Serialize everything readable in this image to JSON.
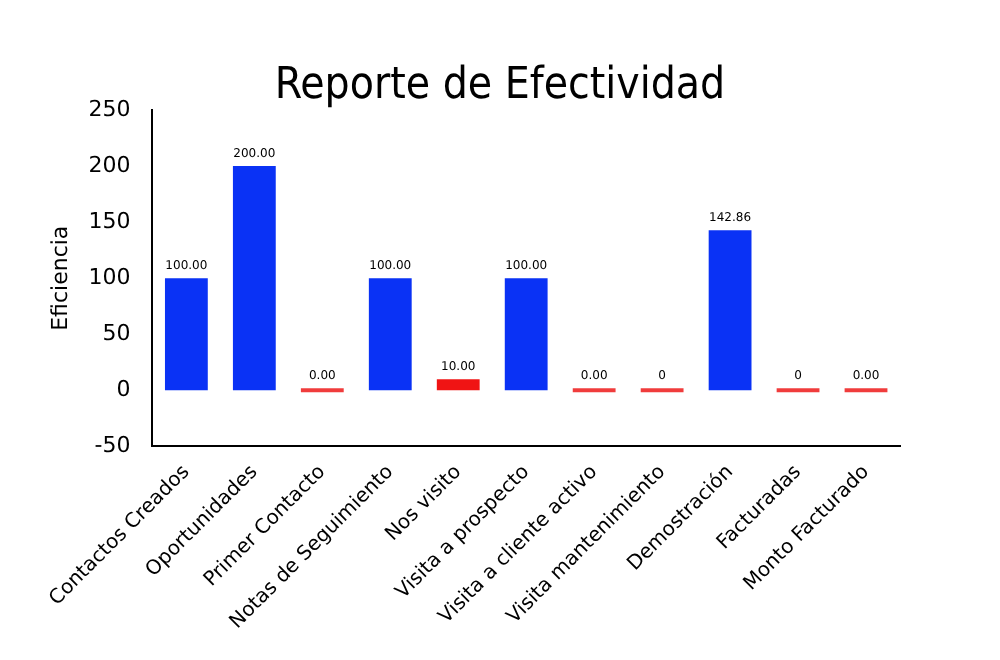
{
  "chart_data": {
    "type": "bar",
    "title": "Reporte de Efectividad",
    "ylabel": "Eficiencia",
    "categories": [
      "Contactos Creados",
      "Oportunidades",
      "Primer Contacto",
      "Notas de Seguimiento",
      "Nos visito",
      "Visita a prospecto",
      "Visita a cliente activo",
      "Visita mantenimiento",
      "Demostración",
      "Facturadas",
      "Monto Facturado"
    ],
    "values": [
      100,
      200,
      0,
      100,
      10,
      100,
      0,
      0,
      142.86,
      0,
      0
    ],
    "colors": [
      "#0a32f5",
      "#0a32f5",
      "#f03c3c",
      "#0a32f5",
      "#f01414",
      "#0a32f5",
      "#f03c3c",
      "#f03c3c",
      "#0a32f5",
      "#f03c3c",
      "#f03c3c"
    ],
    "value_labels": [
      "100.00",
      "200.00",
      "0.00",
      "100.00",
      "10.00",
      "100.00",
      "0.00",
      "0",
      "142.86",
      "0",
      "0.00"
    ],
    "ylim": [
      -50,
      250
    ],
    "yticks": [
      -50,
      0,
      50,
      100,
      150,
      200,
      250
    ],
    "grid": false,
    "legend": false
  }
}
